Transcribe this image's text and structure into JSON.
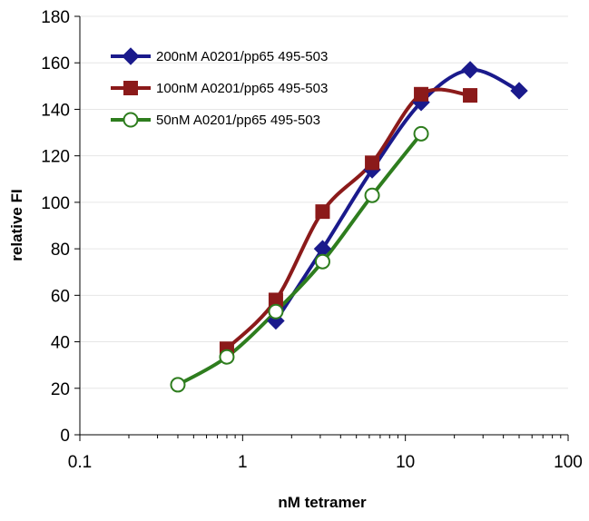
{
  "chart_data": {
    "type": "line",
    "title": "",
    "xlabel": "nM tetramer",
    "ylabel": "relative FI",
    "x_scale": "log",
    "xlim": [
      0.1,
      100
    ],
    "ylim": [
      0,
      180
    ],
    "x_ticks": [
      0.1,
      1,
      10,
      100
    ],
    "x_tick_labels": [
      "0.1",
      "1",
      "10",
      "100"
    ],
    "y_ticks": [
      0,
      20,
      40,
      60,
      80,
      100,
      120,
      140,
      160,
      180
    ],
    "y_tick_labels": [
      "0",
      "20",
      "40",
      "60",
      "80",
      "100",
      "120",
      "140",
      "160",
      "180"
    ],
    "grid": "horizontal",
    "legend_position": "top-left",
    "series": [
      {
        "name": "200nM A0201/pp65 495-503",
        "color": "#1a1a8c",
        "marker": "diamond",
        "x": [
          1.6,
          3.1,
          6.25,
          12.5,
          25,
          50
        ],
        "y": [
          49,
          80,
          114,
          143,
          157,
          148
        ]
      },
      {
        "name": "100nM A0201/pp65 495-503",
        "color": "#8b1a1a",
        "marker": "square",
        "x": [
          0.8,
          1.6,
          3.1,
          6.25,
          12.5,
          25
        ],
        "y": [
          37,
          58,
          96,
          117,
          146.5,
          146
        ]
      },
      {
        "name": "50nM A0201/pp65 495-503",
        "color": "#2e7d1e",
        "marker": "circle-open",
        "x": [
          0.4,
          0.8,
          1.6,
          3.1,
          6.25,
          12.5
        ],
        "y": [
          21.5,
          33.5,
          53,
          74.5,
          103,
          129.5
        ]
      }
    ]
  }
}
